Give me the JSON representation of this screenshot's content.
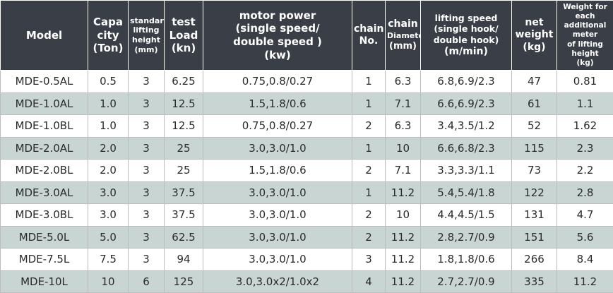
{
  "table": {
    "headers": [
      [
        "Model"
      ],
      [
        "Capa",
        "city",
        "(Ton)"
      ],
      [
        "standard",
        "lifting",
        "height",
        "(mm)"
      ],
      [
        "test",
        "Load",
        "(kn)"
      ],
      [
        "motor power",
        "(single speed/",
        "double speed )",
        "(kw)"
      ],
      [
        "chain",
        "No."
      ],
      [
        "chain",
        "Diameter",
        "(mm)"
      ],
      [
        "lifting speed",
        "(single hook/",
        "double hook)",
        "(m/min)"
      ],
      [
        "net",
        "weight",
        "(kg)"
      ],
      [
        "Weight for each",
        "additional meter",
        "of lifting height",
        "(kg)"
      ]
    ],
    "rows": [
      [
        "MDE-0.5AL",
        "0.5",
        "3",
        "6.25",
        "0.75,0.8/0.27",
        "1",
        "6.3",
        "6.8,6.9/2.3",
        "47",
        "0.81"
      ],
      [
        "MDE-1.0AL",
        "1.0",
        "3",
        "12.5",
        "1.5,1.8/0.6",
        "1",
        "7.1",
        "6.6,6.9/2.3",
        "61",
        "1.1"
      ],
      [
        "MDE-1.0BL",
        "1.0",
        "3",
        "12.5",
        "0.75,0.8/0.27",
        "2",
        "6.3",
        "3.4,3.5/1.2",
        "52",
        "1.62"
      ],
      [
        "MDE-2.0AL",
        "2.0",
        "3",
        "25",
        "3.0,3.0/1.0",
        "1",
        "10",
        "6.6,6.8/2.3",
        "115",
        "2.3"
      ],
      [
        "MDE-2.0BL",
        "2.0",
        "3",
        "25",
        "1.5,1.8/0.6",
        "2",
        "7.1",
        "3.3,3.3/1.1",
        "73",
        "2.2"
      ],
      [
        "MDE-3.0AL",
        "3.0",
        "3",
        "37.5",
        "3.0,3.0/1.0",
        "1",
        "11.2",
        "5.4,5.4/1.8",
        "122",
        "2.8"
      ],
      [
        "MDE-3.0BL",
        "3.0",
        "3",
        "37.5",
        "3.0,3.0/1.0",
        "2",
        "10",
        "4.4,4.5/1.5",
        "131",
        "4.7"
      ],
      [
        "MDE-5.0L",
        "5.0",
        "3",
        "62.5",
        "3.0,3.0/1.0",
        "2",
        "11.2",
        "2.8,2.7/0.9",
        "151",
        "5.6"
      ],
      [
        "MDE-7.5L",
        "7.5",
        "3",
        "94",
        "3.0,3.0/1.0",
        "3",
        "11.2",
        "1.8,1.8/0.6",
        "266",
        "8.4"
      ],
      [
        "MDE-10L",
        "10",
        "6",
        "125",
        "3.0,3.0x2/1.0x2",
        "4",
        "11.2",
        "2.7,2.7/0.9",
        "335",
        "11.2"
      ]
    ]
  },
  "colors": {
    "header_bg": "#3a3f47",
    "header_text": "#ffffff",
    "row_alt_bg": "#c9d5d3",
    "row_bg": "#ffffff"
  }
}
